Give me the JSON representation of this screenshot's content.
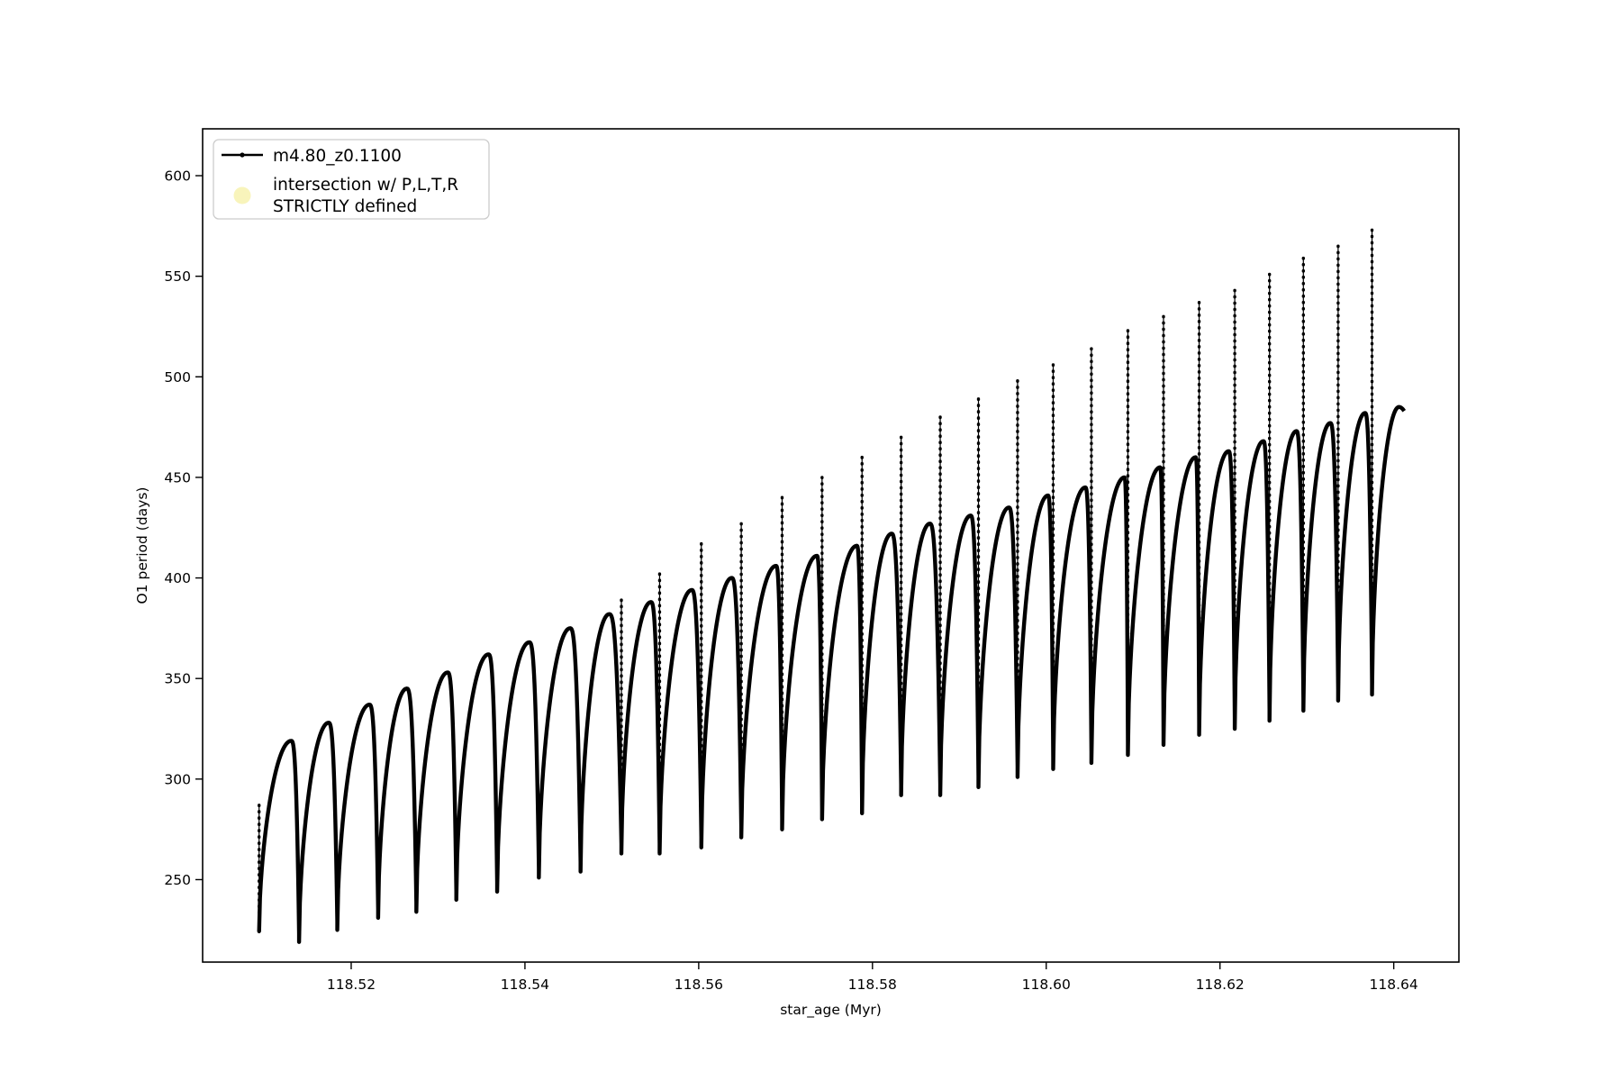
{
  "chart_data": {
    "type": "line",
    "title": "",
    "xlabel": "star_age (Myr)",
    "ylabel": "O1 period (days)",
    "xlim": [
      118.5029,
      118.6475
    ],
    "ylim": [
      209,
      623.3
    ],
    "grid": false,
    "xticks": {
      "values": [
        118.52,
        118.54,
        118.56,
        118.58,
        118.6,
        118.62,
        118.64
      ],
      "labels": [
        "118.52",
        "118.54",
        "118.56",
        "118.58",
        "118.60",
        "118.62",
        "118.64"
      ]
    },
    "yticks": {
      "values": [
        250,
        300,
        350,
        400,
        450,
        500,
        550,
        600
      ],
      "labels": [
        "250",
        "300",
        "350",
        "400",
        "450",
        "500",
        "550",
        "600"
      ]
    },
    "legend": {
      "location": "upper left",
      "entries": [
        {
          "label": "m4.80_z0.1100",
          "marker": "line-with-dot",
          "color": "#000000"
        },
        {
          "label_lines": [
            "intersection w/ P,L,T,R",
            "STRICTLY defined"
          ],
          "marker": "large-circle",
          "color": "#f8f4bb"
        }
      ]
    },
    "series_name": "m4.80_z0.1100",
    "line_color": "#000000",
    "start_spike": {
      "x": 118.5094,
      "top": 287,
      "bottom": 224
    },
    "cycles": [
      {
        "xs": 118.5094,
        "min": 224,
        "xp": 118.5131,
        "peak": 319,
        "xe": 118.514,
        "spike": null
      },
      {
        "xs": 118.514,
        "min": 219,
        "xp": 118.5174,
        "peak": 328,
        "xe": 118.5184,
        "spike": null
      },
      {
        "xs": 118.5184,
        "min": 225,
        "xp": 118.5221,
        "peak": 337,
        "xe": 118.5231,
        "spike": null
      },
      {
        "xs": 118.5231,
        "min": 231,
        "xp": 118.5264,
        "peak": 345,
        "xe": 118.5275,
        "spike": null
      },
      {
        "xs": 118.5275,
        "min": 234,
        "xp": 118.5311,
        "peak": 353,
        "xe": 118.5321,
        "spike": null
      },
      {
        "xs": 118.5321,
        "min": 240,
        "xp": 118.5358,
        "peak": 362,
        "xe": 118.5368,
        "spike": null
      },
      {
        "xs": 118.5368,
        "min": 244,
        "xp": 118.5405,
        "peak": 368,
        "xe": 118.5416,
        "spike": null
      },
      {
        "xs": 118.5416,
        "min": 251,
        "xp": 118.5452,
        "peak": 375,
        "xe": 118.5464,
        "spike": null
      },
      {
        "xs": 118.5464,
        "min": 254,
        "xp": 118.5497,
        "peak": 382,
        "xe": 118.5511,
        "spike": 389
      },
      {
        "xs": 118.5511,
        "min": 263,
        "xp": 118.5545,
        "peak": 388,
        "xe": 118.5555,
        "spike": 402
      },
      {
        "xs": 118.5555,
        "min": 263,
        "xp": 118.5592,
        "peak": 394,
        "xe": 118.5603,
        "spike": 417
      },
      {
        "xs": 118.5603,
        "min": 266,
        "xp": 118.5638,
        "peak": 400,
        "xe": 118.5649,
        "spike": 427
      },
      {
        "xs": 118.5649,
        "min": 271,
        "xp": 118.5689,
        "peak": 406,
        "xe": 118.5696,
        "spike": 440
      },
      {
        "xs": 118.5696,
        "min": 275,
        "xp": 118.5736,
        "peak": 411,
        "xe": 118.5742,
        "spike": 450
      },
      {
        "xs": 118.5742,
        "min": 280,
        "xp": 118.5782,
        "peak": 416,
        "xe": 118.5788,
        "spike": 460
      },
      {
        "xs": 118.5788,
        "min": 283,
        "xp": 118.5822,
        "peak": 422,
        "xe": 118.5833,
        "spike": 470
      },
      {
        "xs": 118.5833,
        "min": 292,
        "xp": 118.5866,
        "peak": 427,
        "xe": 118.5878,
        "spike": 480
      },
      {
        "xs": 118.5878,
        "min": 292,
        "xp": 118.5913,
        "peak": 431,
        "xe": 118.5922,
        "spike": 489
      },
      {
        "xs": 118.5922,
        "min": 296,
        "xp": 118.5957,
        "peak": 435,
        "xe": 118.5967,
        "spike": 498
      },
      {
        "xs": 118.5967,
        "min": 301,
        "xp": 118.6002,
        "peak": 441,
        "xe": 118.6008,
        "spike": 506
      },
      {
        "xs": 118.6008,
        "min": 305,
        "xp": 118.6045,
        "peak": 445,
        "xe": 118.6052,
        "spike": 514
      },
      {
        "xs": 118.6052,
        "min": 308,
        "xp": 118.609,
        "peak": 450,
        "xe": 118.6094,
        "spike": 523
      },
      {
        "xs": 118.6094,
        "min": 312,
        "xp": 118.6131,
        "peak": 455,
        "xe": 118.6135,
        "spike": 530
      },
      {
        "xs": 118.6135,
        "min": 317,
        "xp": 118.6172,
        "peak": 460,
        "xe": 118.6176,
        "spike": 537
      },
      {
        "xs": 118.6176,
        "min": 322,
        "xp": 118.621,
        "peak": 463,
        "xe": 118.6217,
        "spike": 543
      },
      {
        "xs": 118.6217,
        "min": 325,
        "xp": 118.625,
        "peak": 468,
        "xe": 118.6257,
        "spike": 551
      },
      {
        "xs": 118.6257,
        "min": 329,
        "xp": 118.6288,
        "peak": 473,
        "xe": 118.6296,
        "spike": 559
      },
      {
        "xs": 118.6296,
        "min": 334,
        "xp": 118.6327,
        "peak": 477,
        "xe": 118.6336,
        "spike": 565
      },
      {
        "xs": 118.6336,
        "min": 339,
        "xp": 118.6367,
        "peak": 482,
        "xe": 118.6375,
        "spike": 573
      },
      {
        "xs": 118.6375,
        "min": 342,
        "xp": 118.6406,
        "peak": 485,
        "xe": 118.6412,
        "spike": null,
        "partial": true
      }
    ]
  }
}
